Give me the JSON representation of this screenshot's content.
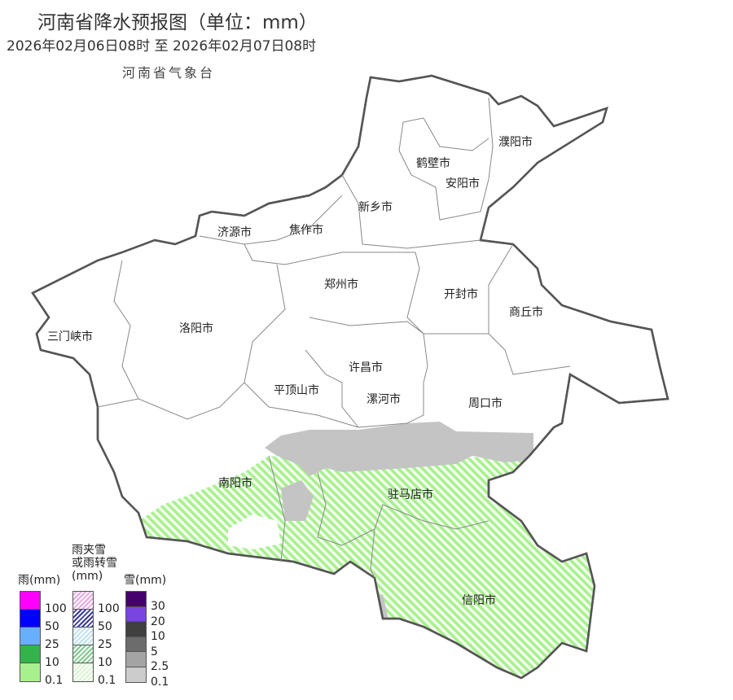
{
  "header": {
    "title": "河南省降水预报图（单位：mm）",
    "period": "2026年02月06日08时  至  2026年02月07日08时",
    "agency": "河南省气象台"
  },
  "cities": [
    "濮阳市",
    "鹤壁市",
    "安阳市",
    "新乡市",
    "济源市",
    "焦作市",
    "郑州市",
    "开封市",
    "商丘市",
    "三门峡市",
    "洛阳市",
    "许昌市",
    "平顶山市",
    "漯河市",
    "周口市",
    "南阳市",
    "驻马店市",
    "信阳市"
  ],
  "legend": {
    "rain": {
      "title": "雨(mm)",
      "colors": [
        "#ff00ff",
        "#0000ff",
        "#66b0ff",
        "#33b34a",
        "#a8f08e"
      ],
      "ticks": [
        "100",
        "50",
        "25",
        "10",
        "0.1"
      ]
    },
    "mixed": {
      "title_line1": "雨夹雪",
      "title_line2": "或雨转雪",
      "title_line3": "(mm)",
      "colors": [
        "#e9a6e6",
        "#3a3aa0",
        "#bfe0f2",
        "#7cc98a",
        "#d8f5cf"
      ],
      "ticks": [
        "100",
        "50",
        "25",
        "10",
        "0.1"
      ]
    },
    "snow": {
      "title": "雪(mm)",
      "colors": [
        "#45006e",
        "#7a44e0",
        "#404040",
        "#6c6c6c",
        "#a4a4a4",
        "#cccccc"
      ],
      "ticks": [
        "30",
        "20",
        "10",
        "5",
        "2.5",
        "0.1"
      ]
    }
  },
  "map_areas": {
    "rain_snow_mixed_color": "#a8f08e",
    "snow_color": "#c4c4c4"
  }
}
